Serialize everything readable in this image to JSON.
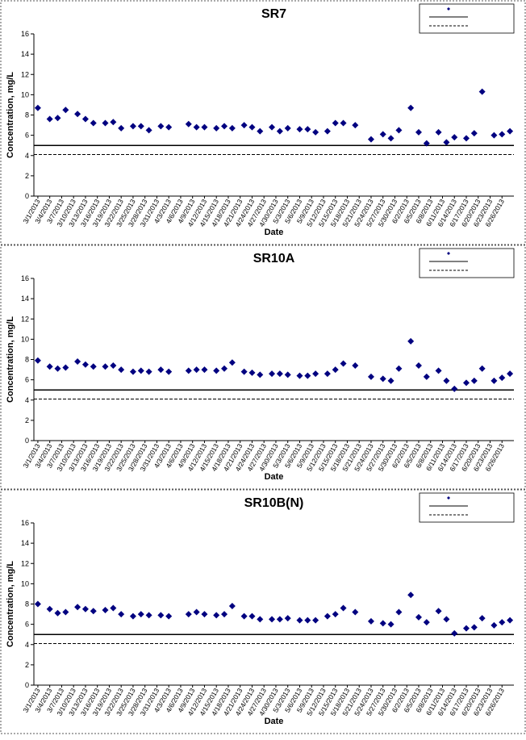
{
  "chart_data": [
    {
      "type": "scatter",
      "title": "SR7",
      "x_label": "Date",
      "y_label": "Concentration, mg/L",
      "xlim": [
        "2/28/2013",
        "6/29/2013"
      ],
      "xticks": [
        "3/1/2013",
        "3/4/2013",
        "3/7/2013",
        "3/10/2013",
        "3/13/2013",
        "3/16/2013",
        "3/19/2013",
        "3/22/2013",
        "3/25/2013",
        "3/28/2013",
        "3/31/2013",
        "4/3/2013",
        "4/6/2013",
        "4/9/2013",
        "4/12/2013",
        "4/15/2013",
        "4/18/2013",
        "4/21/2013",
        "4/24/2013",
        "4/27/2013",
        "4/30/2013",
        "5/3/2013",
        "5/6/2013",
        "5/9/2013",
        "5/12/2013",
        "5/15/2013",
        "5/18/2013",
        "5/21/2013",
        "5/24/2013",
        "5/27/2013",
        "5/30/2013",
        "6/2/2013",
        "6/5/2013",
        "6/8/2013",
        "6/11/2013",
        "6/14/2013",
        "6/17/2013",
        "6/20/2013",
        "6/23/2013",
        "6/26/2013"
      ],
      "ylim": [
        0,
        16
      ],
      "yticks": [
        0,
        2,
        4,
        6,
        8,
        10,
        12,
        14,
        16
      ],
      "x": [
        "3/1/2013",
        "3/4/2013",
        "3/6/2013",
        "3/8/2013",
        "3/11/2013",
        "3/13/2013",
        "3/15/2013",
        "3/18/2013",
        "3/20/2013",
        "3/22/2013",
        "3/25/2013",
        "3/27/2013",
        "3/29/2013",
        "4/1/2013",
        "4/3/2013",
        "4/8/2013",
        "4/10/2013",
        "4/12/2013",
        "4/15/2013",
        "4/17/2013",
        "4/19/2013",
        "4/22/2013",
        "4/24/2013",
        "4/26/2013",
        "4/29/2013",
        "5/1/2013",
        "5/3/2013",
        "5/6/2013",
        "5/8/2013",
        "5/10/2013",
        "5/13/2013",
        "5/15/2013",
        "5/17/2013",
        "5/20/2013",
        "5/24/2013",
        "5/27/2013",
        "5/29/2013",
        "5/31/2013",
        "6/3/2013",
        "6/5/2013",
        "6/7/2013",
        "6/10/2013",
        "6/12/2013",
        "6/14/2013",
        "6/17/2013",
        "6/19/2013",
        "6/21/2013",
        "6/24/2013",
        "6/26/2013",
        "6/28/2013"
      ],
      "series": [
        {
          "color": "#000080",
          "marker": "diamond",
          "values": [
            8.7,
            7.6,
            7.7,
            8.5,
            8.1,
            7.6,
            7.2,
            7.2,
            7.3,
            6.7,
            6.9,
            6.9,
            6.5,
            6.9,
            6.8,
            7.1,
            6.8,
            6.8,
            6.7,
            6.9,
            6.7,
            7.0,
            6.8,
            6.4,
            6.8,
            6.4,
            6.7,
            6.6,
            6.6,
            6.3,
            6.4,
            7.2,
            7.2,
            7.0,
            5.6,
            6.1,
            5.7,
            6.5,
            8.7,
            6.3,
            5.2,
            6.3,
            5.3,
            5.8,
            5.7,
            6.2,
            10.3,
            6.0,
            6.1,
            6.4
          ]
        }
      ],
      "hlines": [
        {
          "value": 5,
          "style": "solid",
          "color": "#000000"
        },
        {
          "value": 4.1,
          "style": "dashed",
          "color": "#000000"
        }
      ]
    },
    {
      "type": "scatter",
      "title": "SR10A",
      "x_label": "Date",
      "y_label": "Concentration, mg/L",
      "xlim": [
        "2/28/2013",
        "6/29/2013"
      ],
      "xticks": [
        "3/1/2013",
        "3/4/2013",
        "3/7/2013",
        "3/10/2013",
        "3/13/2013",
        "3/16/2013",
        "3/19/2013",
        "3/22/2013",
        "3/25/2013",
        "3/28/2013",
        "3/31/2013",
        "4/3/2013",
        "4/6/2013",
        "4/9/2013",
        "4/12/2013",
        "4/15/2013",
        "4/18/2013",
        "4/21/2013",
        "4/24/2013",
        "4/27/2013",
        "4/30/2013",
        "5/3/2013",
        "5/6/2013",
        "5/9/2013",
        "5/12/2013",
        "5/15/2013",
        "5/18/2013",
        "5/21/2013",
        "5/24/2013",
        "5/27/2013",
        "5/30/2013",
        "6/2/2013",
        "6/5/2013",
        "6/8/2013",
        "6/11/2013",
        "6/14/2013",
        "6/17/2013",
        "6/20/2013",
        "6/23/2013",
        "6/26/2013"
      ],
      "ylim": [
        0,
        16
      ],
      "yticks": [
        0,
        2,
        4,
        6,
        8,
        10,
        12,
        14,
        16
      ],
      "x": [
        "3/1/2013",
        "3/4/2013",
        "3/6/2013",
        "3/8/2013",
        "3/11/2013",
        "3/13/2013",
        "3/15/2013",
        "3/18/2013",
        "3/20/2013",
        "3/22/2013",
        "3/25/2013",
        "3/27/2013",
        "3/29/2013",
        "4/1/2013",
        "4/3/2013",
        "4/8/2013",
        "4/10/2013",
        "4/12/2013",
        "4/15/2013",
        "4/17/2013",
        "4/19/2013",
        "4/22/2013",
        "4/24/2013",
        "4/26/2013",
        "4/29/2013",
        "5/1/2013",
        "5/3/2013",
        "5/6/2013",
        "5/8/2013",
        "5/10/2013",
        "5/13/2013",
        "5/15/2013",
        "5/17/2013",
        "5/20/2013",
        "5/24/2013",
        "5/27/2013",
        "5/29/2013",
        "5/31/2013",
        "6/3/2013",
        "6/5/2013",
        "6/7/2013",
        "6/10/2013",
        "6/12/2013",
        "6/14/2013",
        "6/17/2013",
        "6/19/2013",
        "6/21/2013",
        "6/24/2013",
        "6/26/2013",
        "6/28/2013"
      ],
      "series": [
        {
          "color": "#000080",
          "marker": "diamond",
          "values": [
            7.9,
            7.3,
            7.1,
            7.2,
            7.8,
            7.5,
            7.3,
            7.3,
            7.4,
            7.0,
            6.8,
            6.9,
            6.8,
            7.0,
            6.8,
            6.9,
            7.0,
            7.0,
            6.9,
            7.1,
            7.7,
            6.8,
            6.7,
            6.5,
            6.6,
            6.6,
            6.5,
            6.4,
            6.4,
            6.6,
            6.6,
            7.0,
            7.6,
            7.4,
            6.3,
            6.1,
            5.9,
            7.1,
            9.8,
            7.4,
            6.3,
            6.9,
            5.9,
            5.1,
            5.7,
            5.9,
            7.1,
            5.9,
            6.2,
            6.6
          ]
        }
      ],
      "hlines": [
        {
          "value": 5,
          "style": "solid",
          "color": "#000000"
        },
        {
          "value": 4.1,
          "style": "dashed",
          "color": "#000000"
        }
      ]
    },
    {
      "type": "scatter",
      "title": "SR10B(N)",
      "x_label": "Date",
      "y_label": "Concentration, mg/L",
      "xlim": [
        "2/28/2013",
        "6/29/2013"
      ],
      "xticks": [
        "3/1/2013",
        "3/4/2013",
        "3/7/2013",
        "3/10/2013",
        "3/13/2013",
        "3/16/2013",
        "3/19/2013",
        "3/22/2013",
        "3/25/2013",
        "3/28/2013",
        "3/31/2013",
        "4/3/2013",
        "4/6/2013",
        "4/9/2013",
        "4/12/2013",
        "4/15/2013",
        "4/18/2013",
        "4/21/2013",
        "4/24/2013",
        "4/27/2013",
        "4/30/2013",
        "5/3/2013",
        "5/6/2013",
        "5/9/2013",
        "5/12/2013",
        "5/15/2013",
        "5/18/2013",
        "5/21/2013",
        "5/24/2013",
        "5/27/2013",
        "5/30/2013",
        "6/2/2013",
        "6/5/2013",
        "6/8/2013",
        "6/11/2013",
        "6/14/2013",
        "6/17/2013",
        "6/20/2013",
        "6/23/2013",
        "6/26/2013"
      ],
      "ylim": [
        0,
        16
      ],
      "yticks": [
        0,
        2,
        4,
        6,
        8,
        10,
        12,
        14,
        16
      ],
      "x": [
        "3/1/2013",
        "3/4/2013",
        "3/6/2013",
        "3/8/2013",
        "3/11/2013",
        "3/13/2013",
        "3/15/2013",
        "3/18/2013",
        "3/20/2013",
        "3/22/2013",
        "3/25/2013",
        "3/27/2013",
        "3/29/2013",
        "4/1/2013",
        "4/3/2013",
        "4/8/2013",
        "4/10/2013",
        "4/12/2013",
        "4/15/2013",
        "4/17/2013",
        "4/19/2013",
        "4/22/2013",
        "4/24/2013",
        "4/26/2013",
        "4/29/2013",
        "5/1/2013",
        "5/3/2013",
        "5/6/2013",
        "5/8/2013",
        "5/10/2013",
        "5/13/2013",
        "5/15/2013",
        "5/17/2013",
        "5/20/2013",
        "5/24/2013",
        "5/27/2013",
        "5/29/2013",
        "5/31/2013",
        "6/3/2013",
        "6/5/2013",
        "6/7/2013",
        "6/10/2013",
        "6/12/2013",
        "6/14/2013",
        "6/17/2013",
        "6/19/2013",
        "6/21/2013",
        "6/24/2013",
        "6/26/2013",
        "6/28/2013"
      ],
      "series": [
        {
          "color": "#000080",
          "marker": "diamond",
          "values": [
            8.0,
            7.5,
            7.1,
            7.2,
            7.7,
            7.5,
            7.3,
            7.4,
            7.6,
            7.0,
            6.8,
            7.0,
            6.9,
            6.9,
            6.8,
            7.0,
            7.2,
            7.0,
            6.9,
            7.0,
            7.8,
            6.8,
            6.8,
            6.5,
            6.5,
            6.5,
            6.6,
            6.4,
            6.4,
            6.4,
            6.8,
            7.0,
            7.6,
            7.2,
            6.3,
            6.1,
            6.0,
            7.2,
            8.9,
            6.7,
            6.2,
            7.3,
            6.5,
            5.1,
            5.6,
            5.7,
            6.6,
            5.9,
            6.2,
            6.4
          ]
        }
      ],
      "hlines": [
        {
          "value": 5,
          "style": "solid",
          "color": "#000000"
        },
        {
          "value": 4.1,
          "style": "dashed",
          "color": "#000000"
        }
      ]
    }
  ]
}
